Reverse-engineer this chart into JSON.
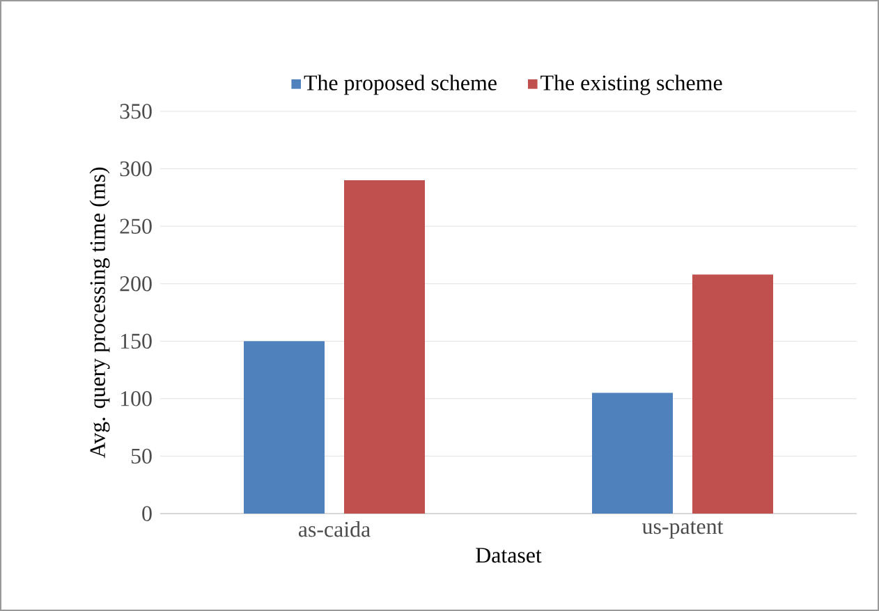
{
  "chart_data": {
    "type": "bar",
    "xlabel": "Dataset",
    "ylabel": "Avg. query processing time (ms)",
    "categories": [
      "as-caida",
      "us-patent"
    ],
    "series": [
      {
        "name": "The proposed scheme",
        "color": "#4f81bd",
        "values": [
          150,
          105
        ]
      },
      {
        "name": "The existing scheme",
        "color": "#c0504d",
        "values": [
          290,
          208
        ]
      }
    ],
    "ylim": [
      0,
      350
    ],
    "yticks": [
      0,
      50,
      100,
      150,
      200,
      250,
      300,
      350
    ],
    "grid": "y",
    "legend": "top"
  }
}
